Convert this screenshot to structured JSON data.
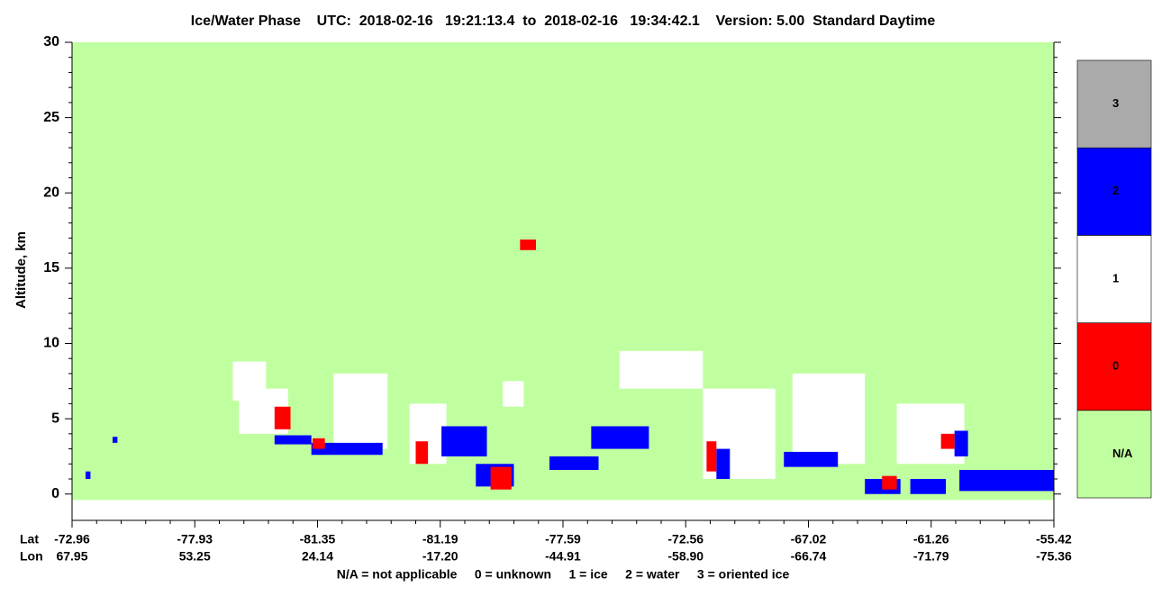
{
  "chart_data": {
    "type": "phase-curtain",
    "title": "Ice/Water Phase    UTC:  2018-02-16   19:21:13.4  to  2018-02-16   19:34:42.1    Version: 5.00  Standard Daytime",
    "y_label": "Altitude, km",
    "x_row_labels": [
      "Lat",
      "Lon"
    ],
    "footer": "N/A = not applicable     0 = unknown     1 = ice     2 = water     3 = oriented ice",
    "ylim": [
      -1.75,
      30
    ],
    "yticks": [
      0,
      5,
      10,
      15,
      20,
      25,
      30
    ],
    "xlim": [
      0,
      8
    ],
    "xticks": [
      {
        "value": 0,
        "label": "-72.96"
      },
      {
        "value": 1,
        "label": "-77.93"
      },
      {
        "value": 2,
        "label": "-81.35"
      },
      {
        "value": 3,
        "label": "-81.19"
      },
      {
        "value": 4,
        "label": "-77.59"
      },
      {
        "value": 5,
        "label": "-72.56"
      },
      {
        "value": 6,
        "label": "-67.02"
      },
      {
        "value": 7,
        "label": "-61.26"
      },
      {
        "value": 8,
        "label": "-55.42"
      }
    ],
    "lon_labels": [
      "67.95",
      "53.25",
      "24.14",
      "-17.20",
      "-44.91",
      "-58.90",
      "-66.74",
      "-71.79",
      "-75.36"
    ],
    "phases": [
      {
        "label": "N/A",
        "color": "#c0ffa0"
      },
      {
        "label": "0",
        "color": "#ff0000"
      },
      {
        "label": "1",
        "color": "#ffffff"
      },
      {
        "label": "2",
        "color": "#0000ff"
      },
      {
        "label": "3",
        "color": "#aaaaaa"
      }
    ],
    "regions": [
      {
        "x": [
          0,
          8
        ],
        "y": [
          -0.4,
          30
        ],
        "phase": 0
      },
      {
        "x": [
          1.31,
          1.58
        ],
        "y": [
          6.2,
          8.8
        ],
        "phase": 2
      },
      {
        "x": [
          1.36,
          1.76
        ],
        "y": [
          4,
          7
        ],
        "phase": 2
      },
      {
        "x": [
          2.13,
          2.57
        ],
        "y": [
          3,
          8
        ],
        "phase": 2
      },
      {
        "x": [
          2.75,
          3.05
        ],
        "y": [
          2,
          6
        ],
        "phase": 2
      },
      {
        "x": [
          3.51,
          3.68
        ],
        "y": [
          5.8,
          7.5
        ],
        "phase": 2
      },
      {
        "x": [
          4.46,
          5.14
        ],
        "y": [
          7,
          9.5
        ],
        "phase": 2
      },
      {
        "x": [
          5.14,
          5.73
        ],
        "y": [
          1,
          7
        ],
        "phase": 2
      },
      {
        "x": [
          5.87,
          6.46
        ],
        "y": [
          2,
          8
        ],
        "phase": 2
      },
      {
        "x": [
          6.72,
          7.27
        ],
        "y": [
          2,
          6
        ],
        "phase": 2
      },
      {
        "x": [
          0.11,
          0.15
        ],
        "y": [
          1,
          1.5
        ],
        "phase": 3
      },
      {
        "x": [
          0.33,
          0.37
        ],
        "y": [
          3.4,
          3.8
        ],
        "phase": 3
      },
      {
        "x": [
          1.65,
          1.95
        ],
        "y": [
          3.3,
          3.9
        ],
        "phase": 3
      },
      {
        "x": [
          1.95,
          2.53
        ],
        "y": [
          2.6,
          3.4
        ],
        "phase": 3
      },
      {
        "x": [
          3.01,
          3.38
        ],
        "y": [
          2.5,
          4.5
        ],
        "phase": 3
      },
      {
        "x": [
          3.29,
          3.6
        ],
        "y": [
          0.5,
          2
        ],
        "phase": 3
      },
      {
        "x": [
          3.89,
          4.29
        ],
        "y": [
          1.6,
          2.5
        ],
        "phase": 3
      },
      {
        "x": [
          4.23,
          4.7
        ],
        "y": [
          3,
          4.5
        ],
        "phase": 3
      },
      {
        "x": [
          5.25,
          5.36
        ],
        "y": [
          1,
          3
        ],
        "phase": 3
      },
      {
        "x": [
          5.8,
          6.24
        ],
        "y": [
          1.8,
          2.8
        ],
        "phase": 3
      },
      {
        "x": [
          6.46,
          6.75
        ],
        "y": [
          0,
          1
        ],
        "phase": 3
      },
      {
        "x": [
          6.83,
          7.12
        ],
        "y": [
          0,
          1
        ],
        "phase": 3
      },
      {
        "x": [
          7.19,
          7.3
        ],
        "y": [
          2.5,
          4.2
        ],
        "phase": 3
      },
      {
        "x": [
          7.23,
          8
        ],
        "y": [
          0.2,
          1.6
        ],
        "phase": 3
      },
      {
        "x": [
          3.65,
          3.78
        ],
        "y": [
          16.2,
          16.9
        ],
        "phase": 1
      },
      {
        "x": [
          1.65,
          1.78
        ],
        "y": [
          4.3,
          5.8
        ],
        "phase": 1
      },
      {
        "x": [
          1.96,
          2.06
        ],
        "y": [
          3,
          3.7
        ],
        "phase": 1
      },
      {
        "x": [
          2.8,
          2.9
        ],
        "y": [
          2,
          3.5
        ],
        "phase": 1
      },
      {
        "x": [
          3.41,
          3.58
        ],
        "y": [
          0.3,
          1.8
        ],
        "phase": 1
      },
      {
        "x": [
          5.17,
          5.25
        ],
        "y": [
          1.5,
          3.5
        ],
        "phase": 1
      },
      {
        "x": [
          6.6,
          6.72
        ],
        "y": [
          0.3,
          1.2
        ],
        "phase": 1
      },
      {
        "x": [
          7.08,
          7.19
        ],
        "y": [
          3,
          4
        ],
        "phase": 1
      }
    ]
  }
}
